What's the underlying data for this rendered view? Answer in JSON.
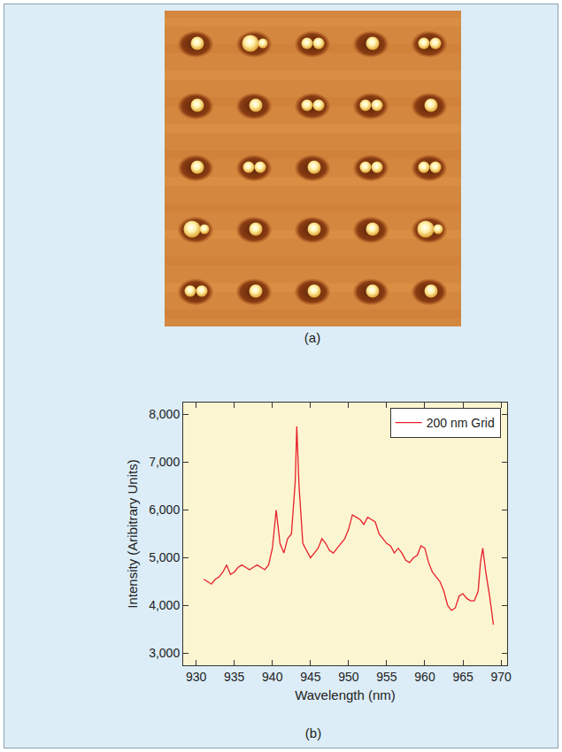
{
  "image_panel": {
    "label": "(a)"
  },
  "chart_data": {
    "type": "line",
    "panel_label": "(b)",
    "x_label": "Wavelength (nm)",
    "y_label": "Intensity (Aribitrary Units)",
    "x": [
      931,
      931.5,
      932,
      932.5,
      933,
      933.5,
      934,
      934.5,
      935,
      935.5,
      936,
      936.5,
      937,
      937.5,
      938,
      938.5,
      939,
      939.5,
      940,
      940.5,
      941,
      941.5,
      942,
      942.5,
      943,
      943.2,
      943.5,
      944,
      944.5,
      945,
      945.5,
      946,
      946.5,
      947,
      947.5,
      948,
      948.5,
      949,
      949.5,
      950,
      950.5,
      951,
      951.5,
      952,
      952.5,
      953,
      953.5,
      954,
      954.5,
      955,
      955.5,
      956,
      956.5,
      957,
      957.5,
      958,
      958.5,
      959,
      959.5,
      960,
      960.5,
      961,
      961.5,
      962,
      962.5,
      963,
      963.5,
      964,
      964.5,
      965,
      965.5,
      966,
      966.5,
      967,
      967.3,
      967.6,
      968,
      968.5,
      969
    ],
    "series": [
      {
        "name": "200 nm Grid",
        "color": "#e8202a",
        "values": [
          4550,
          4500,
          4450,
          4550,
          4600,
          4700,
          4850,
          4650,
          4700,
          4800,
          4850,
          4800,
          4750,
          4800,
          4850,
          4800,
          4750,
          4850,
          5200,
          6000,
          5300,
          5100,
          5400,
          5500,
          6600,
          7750,
          6500,
          5300,
          5150,
          5000,
          5100,
          5200,
          5400,
          5300,
          5150,
          5100,
          5200,
          5300,
          5400,
          5600,
          5900,
          5850,
          5800,
          5700,
          5850,
          5800,
          5750,
          5500,
          5400,
          5300,
          5250,
          5100,
          5200,
          5100,
          4950,
          4900,
          5000,
          5050,
          5250,
          5200,
          4900,
          4700,
          4600,
          4500,
          4300,
          4000,
          3900,
          3950,
          4200,
          4250,
          4150,
          4100,
          4100,
          4300,
          4900,
          5200,
          4700,
          4200,
          3600
        ]
      }
    ],
    "xlim": [
      928.3,
      970.8
    ],
    "xticks": [
      930,
      935,
      940,
      945,
      950,
      955,
      960,
      965,
      970
    ],
    "ylim": [
      2750,
      8250
    ],
    "yticks": [
      {
        "value": 3000,
        "label": "3,000"
      },
      {
        "value": 4000,
        "label": "4,000"
      },
      {
        "value": 5000,
        "label": "5,000"
      },
      {
        "value": 6000,
        "label": "6,000"
      },
      {
        "value": 7000,
        "label": "7,000"
      },
      {
        "value": 8000,
        "label": "8,000"
      }
    ],
    "legend": "upper right",
    "grid": false
  }
}
